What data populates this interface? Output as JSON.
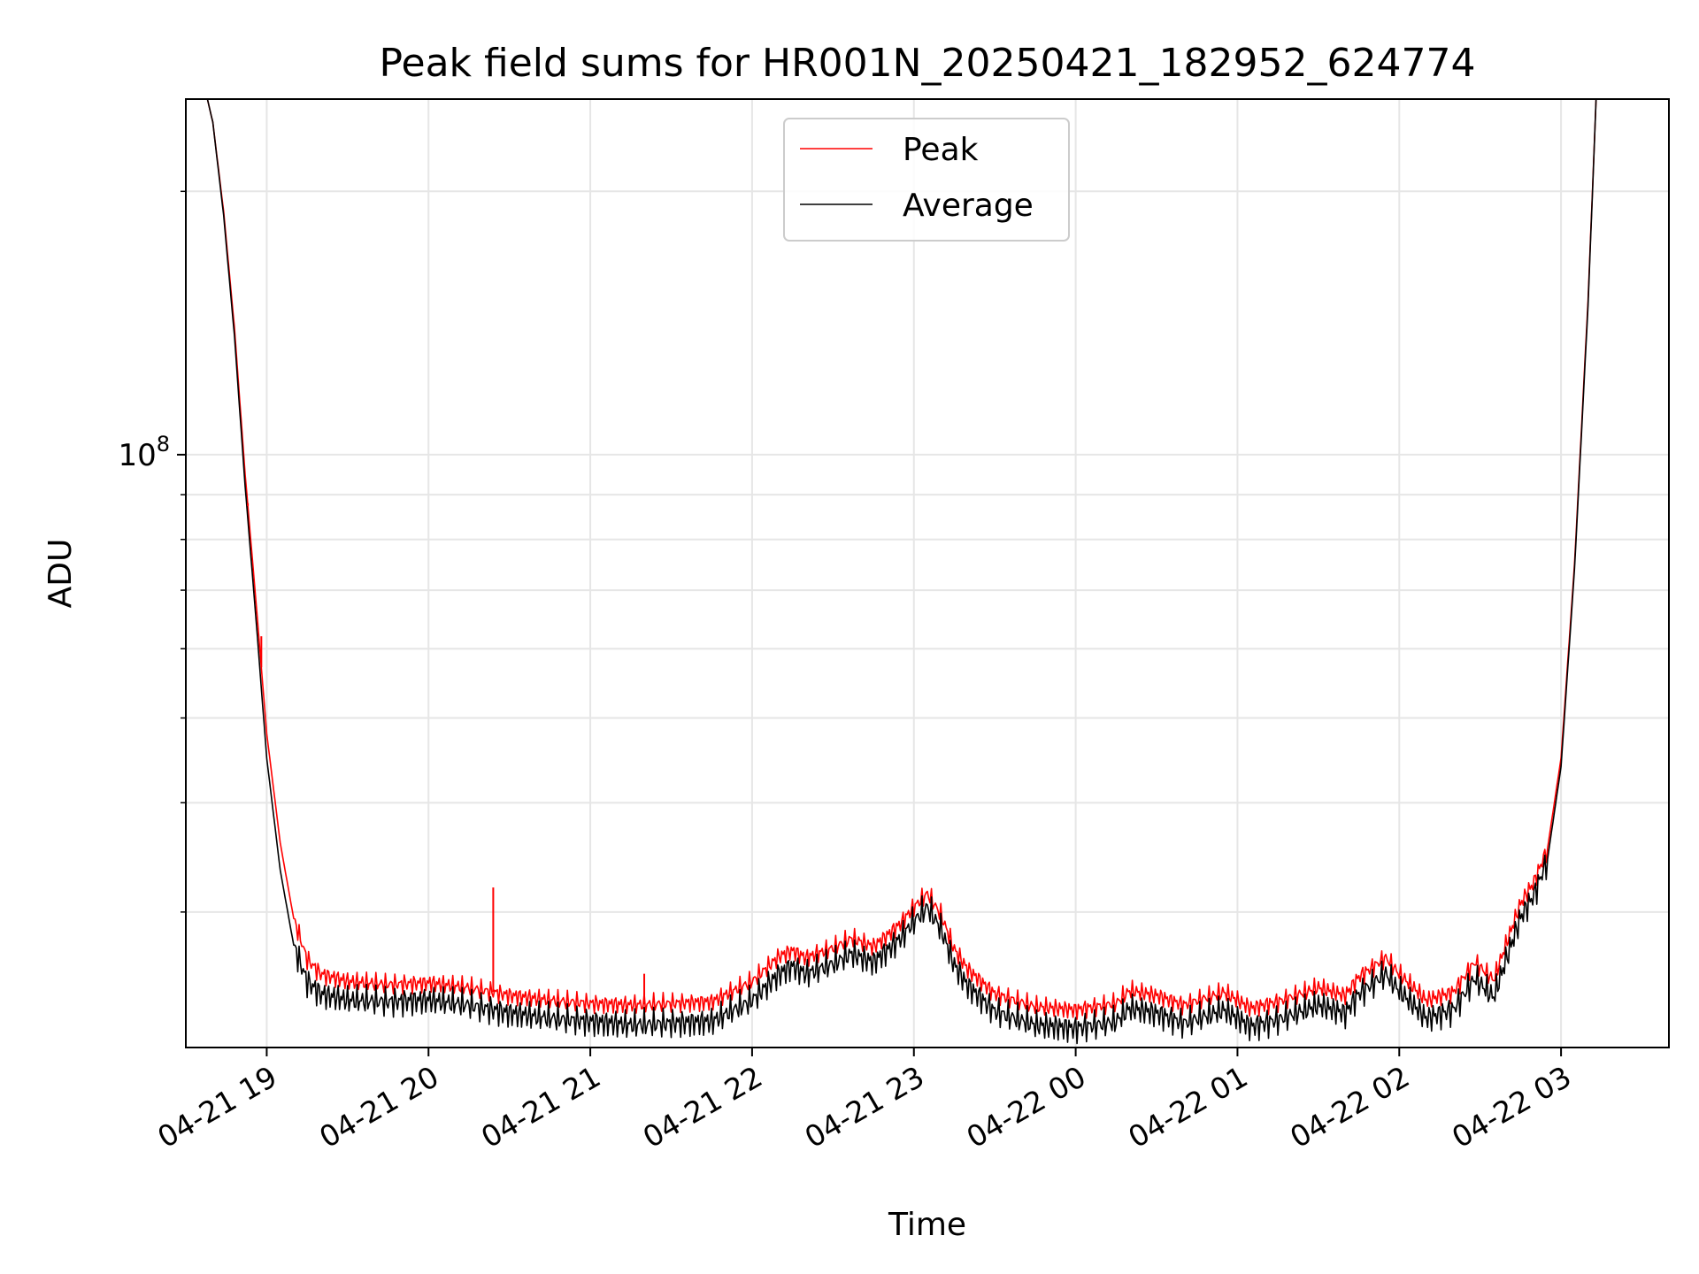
{
  "chart_data": {
    "type": "line",
    "title": "Peak field sums for HR001N_20250421_182952_624774",
    "xlabel": "Time",
    "ylabel": "ADU",
    "y_scale": "log",
    "x_range": [
      "2025-04-21 18:30",
      "2025-04-22 03:40"
    ],
    "ylim": [
      21000000,
      255000000
    ],
    "ytick_labels": [
      {
        "base": "10",
        "exp": "8",
        "value": 100000000
      }
    ],
    "xtick_labels": [
      "04-21 19",
      "04-21 20",
      "04-21 21",
      "04-21 22",
      "04-21 23",
      "04-22 00",
      "04-22 01",
      "04-22 02",
      "04-22 03"
    ],
    "grid": true,
    "legend": {
      "placement": "upper center",
      "entries": [
        "Peak",
        "Average"
      ]
    },
    "colors": {
      "Peak": "#ff0000",
      "Average": "#000000",
      "grid": "#e6e6e6"
    },
    "series": [
      {
        "name": "Peak",
        "x": [
          "2025-04-21 18:38",
          "2025-04-21 18:40",
          "2025-04-21 18:44",
          "2025-04-21 18:48",
          "2025-04-21 18:52",
          "2025-04-21 18:56",
          "2025-04-21 19:00",
          "2025-04-21 19:05",
          "2025-04-21 19:10",
          "2025-04-21 19:15",
          "2025-04-21 19:20",
          "2025-04-21 19:30",
          "2025-04-21 19:45",
          "2025-04-21 20:00",
          "2025-04-21 20:15",
          "2025-04-21 20:30",
          "2025-04-21 20:45",
          "2025-04-21 21:00",
          "2025-04-21 21:15",
          "2025-04-21 21:30",
          "2025-04-21 21:45",
          "2025-04-21 22:00",
          "2025-04-21 22:10",
          "2025-04-21 22:15",
          "2025-04-21 22:20",
          "2025-04-21 22:30",
          "2025-04-21 22:37",
          "2025-04-21 22:45",
          "2025-04-21 22:50",
          "2025-04-21 22:55",
          "2025-04-21 23:00",
          "2025-04-21 23:05",
          "2025-04-21 23:10",
          "2025-04-21 23:15",
          "2025-04-21 23:20",
          "2025-04-21 23:30",
          "2025-04-21 23:45",
          "2025-04-22 00:00",
          "2025-04-22 00:15",
          "2025-04-22 00:20",
          "2025-04-22 00:30",
          "2025-04-22 00:40",
          "2025-04-22 00:55",
          "2025-04-22 01:05",
          "2025-04-22 01:15",
          "2025-04-22 01:30",
          "2025-04-22 01:40",
          "2025-04-22 01:45",
          "2025-04-22 01:55",
          "2025-04-22 02:00",
          "2025-04-22 02:10",
          "2025-04-22 02:20",
          "2025-04-22 02:28",
          "2025-04-22 02:35",
          "2025-04-22 02:40",
          "2025-04-22 02:45",
          "2025-04-22 02:50",
          "2025-04-22 02:55",
          "2025-04-22 03:00",
          "2025-04-22 03:05",
          "2025-04-22 03:10",
          "2025-04-22 03:13"
        ],
        "values": [
          255000000,
          240000000,
          190000000,
          140000000,
          95000000,
          68000000,
          48000000,
          36000000,
          29500000,
          26500000,
          25500000,
          25000000,
          24800000,
          24900000,
          24600000,
          24100000,
          23800000,
          23600000,
          23500000,
          23600000,
          23700000,
          25000000,
          26700000,
          27100000,
          26600000,
          27300000,
          28000000,
          27400000,
          28200000,
          29100000,
          30400000,
          31500000,
          29800000,
          27200000,
          25800000,
          24200000,
          23400000,
          23200000,
          23600000,
          24400000,
          24100000,
          23500000,
          24300000,
          23300000,
          23700000,
          24600000,
          24100000,
          25300000,
          26600000,
          25500000,
          23800000,
          24300000,
          26300000,
          25100000,
          27800000,
          30700000,
          32500000,
          35500000,
          45000000,
          75000000,
          150000000,
          255000000
        ]
      },
      {
        "name": "Average",
        "x": [
          "2025-04-21 18:38",
          "2025-04-21 18:40",
          "2025-04-21 18:44",
          "2025-04-21 18:48",
          "2025-04-21 18:52",
          "2025-04-21 18:56",
          "2025-04-21 19:00",
          "2025-04-21 19:05",
          "2025-04-21 19:10",
          "2025-04-21 19:15",
          "2025-04-21 19:20",
          "2025-04-21 19:30",
          "2025-04-21 19:45",
          "2025-04-21 20:00",
          "2025-04-21 20:15",
          "2025-04-21 20:30",
          "2025-04-21 20:45",
          "2025-04-21 21:00",
          "2025-04-21 21:15",
          "2025-04-21 21:30",
          "2025-04-21 21:45",
          "2025-04-21 22:00",
          "2025-04-21 22:10",
          "2025-04-21 22:15",
          "2025-04-21 22:20",
          "2025-04-21 22:30",
          "2025-04-21 22:37",
          "2025-04-21 22:45",
          "2025-04-21 22:50",
          "2025-04-21 22:55",
          "2025-04-21 23:00",
          "2025-04-21 23:05",
          "2025-04-21 23:10",
          "2025-04-21 23:15",
          "2025-04-21 23:20",
          "2025-04-21 23:30",
          "2025-04-21 23:45",
          "2025-04-22 00:00",
          "2025-04-22 00:15",
          "2025-04-22 00:20",
          "2025-04-22 00:30",
          "2025-04-22 00:40",
          "2025-04-22 00:55",
          "2025-04-22 01:05",
          "2025-04-22 01:15",
          "2025-04-22 01:30",
          "2025-04-22 01:40",
          "2025-04-22 01:45",
          "2025-04-22 01:55",
          "2025-04-22 02:00",
          "2025-04-22 02:10",
          "2025-04-22 02:20",
          "2025-04-22 02:28",
          "2025-04-22 02:35",
          "2025-04-22 02:40",
          "2025-04-22 02:45",
          "2025-04-22 02:50",
          "2025-04-22 02:55",
          "2025-04-22 03:00",
          "2025-04-22 03:05",
          "2025-04-22 03:10",
          "2025-04-22 03:13"
        ],
        "values": [
          255000000,
          240000000,
          188000000,
          137000000,
          92000000,
          65000000,
          45000000,
          33500000,
          27500000,
          25000000,
          24200000,
          23800000,
          23700000,
          23800000,
          23500000,
          23000000,
          22700000,
          22500000,
          22300000,
          22400000,
          22500000,
          23800000,
          25500000,
          26000000,
          25500000,
          26200000,
          26900000,
          26300000,
          27100000,
          28000000,
          29300000,
          30400000,
          28700000,
          26100000,
          24700000,
          23100000,
          22300000,
          22100000,
          22500000,
          23300000,
          23000000,
          22400000,
          23200000,
          22200000,
          22600000,
          23500000,
          23000000,
          24200000,
          25500000,
          24400000,
          22700000,
          23200000,
          25200000,
          24000000,
          26700000,
          29600000,
          31400000,
          34500000,
          44000000,
          74000000,
          148000000,
          255000000
        ]
      }
    ],
    "annotations": [
      {
        "series": "Peak",
        "x": "2025-04-21 18:53",
        "value": 88000000
      },
      {
        "series": "Peak",
        "x": "2025-04-21 18:58",
        "value": 62000000
      },
      {
        "series": "Peak",
        "x": "2025-04-21 20:24",
        "value": 32000000
      },
      {
        "series": "Peak",
        "x": "2025-04-21 21:20",
        "value": 25500000
      }
    ]
  }
}
